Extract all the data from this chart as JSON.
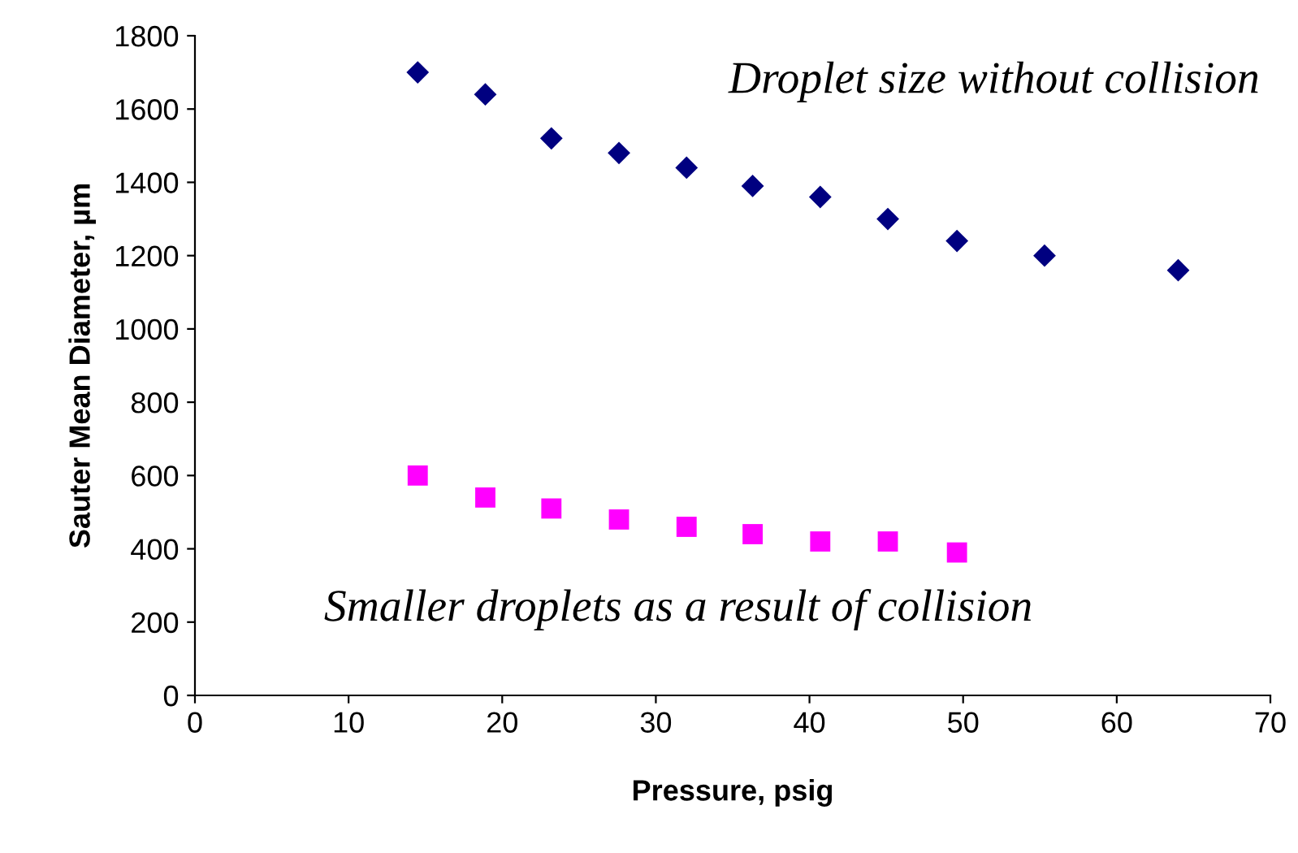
{
  "chart_data": {
    "type": "scatter",
    "xlabel": "Pressure, psig",
    "ylabel": "Sauter Mean Diameter, µm",
    "series": [
      {
        "color": "#000080",
        "marker": "diamond",
        "x": [
          14.5,
          18.9,
          23.2,
          27.6,
          32.0,
          36.3,
          40.7,
          45.1,
          49.6,
          55.3,
          64.0
        ],
        "values": [
          1700,
          1640,
          1520,
          1480,
          1440,
          1390,
          1360,
          1300,
          1240,
          1200,
          1160
        ]
      },
      {
        "color": "#ff00ff",
        "marker": "square",
        "x": [
          14.5,
          18.9,
          23.2,
          27.6,
          32.0,
          36.3,
          40.7,
          45.1,
          49.6
        ],
        "values": [
          600,
          540,
          510,
          480,
          460,
          440,
          420,
          420,
          390
        ]
      }
    ],
    "annotations": [
      "Droplet size without collision",
      "Smaller droplets as a result of collision"
    ],
    "xlim": [
      0,
      70
    ],
    "xticks": [
      0,
      10,
      20,
      30,
      40,
      50,
      60,
      70
    ],
    "ylim": [
      0,
      1800
    ],
    "yticks": [
      0,
      200,
      400,
      600,
      800,
      1000,
      1200,
      1400,
      1600,
      1800
    ],
    "grid": false,
    "legend": false
  }
}
